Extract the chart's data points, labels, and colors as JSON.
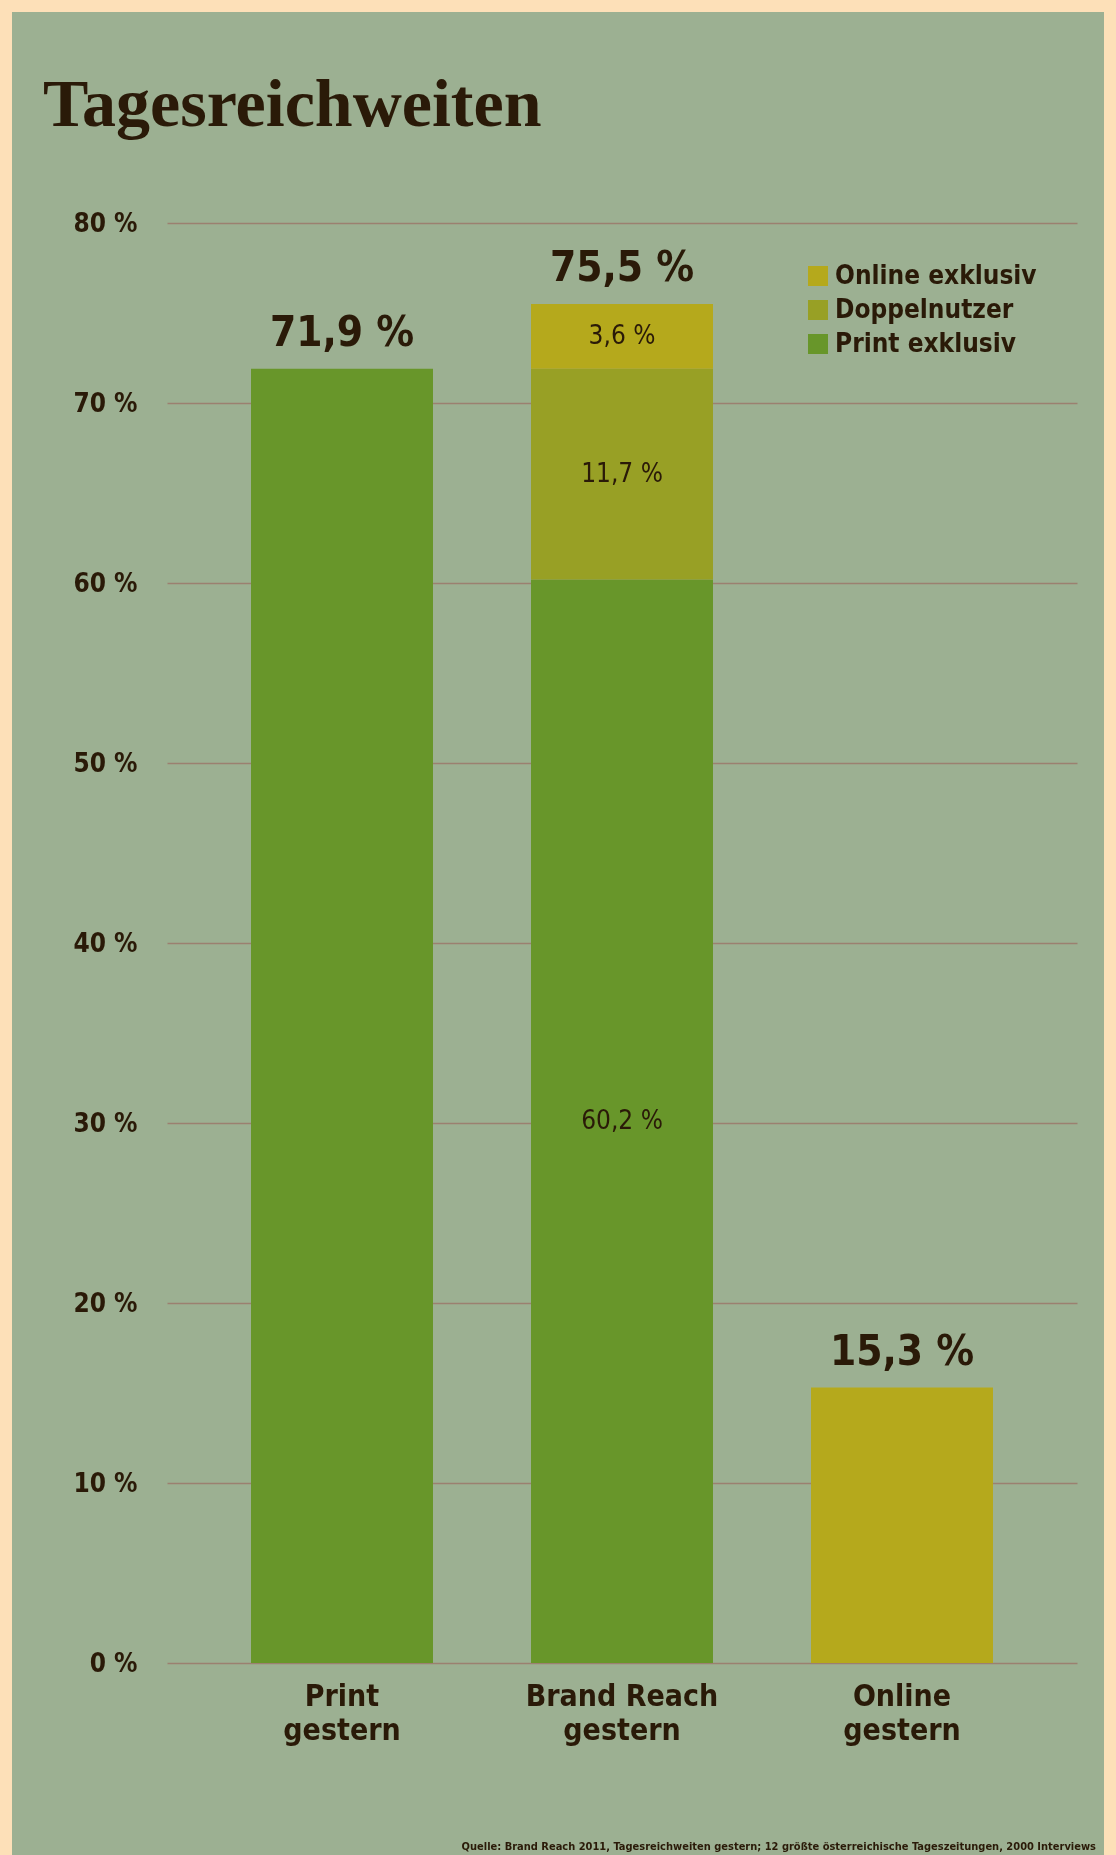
{
  "chart_data": {
    "type": "bar",
    "title": "Tagesreichweiten",
    "categories": [
      "Print\ngestern",
      "Brand Reach\ngestern",
      "Online\ngestern"
    ],
    "stacked": true,
    "series": [
      {
        "name": "Print exklusiv",
        "color": "#68962a",
        "values": [
          71.9,
          60.2,
          null
        ],
        "value_labels": [
          null,
          "60,2 %",
          null
        ]
      },
      {
        "name": "Doppelnutzer",
        "color": "#98a025",
        "values": [
          null,
          11.7,
          null
        ],
        "value_labels": [
          null,
          "11,7 %",
          null
        ]
      },
      {
        "name": "Online exklusiv",
        "color": "#b5a91c",
        "values": [
          null,
          3.6,
          15.3
        ],
        "value_labels": [
          null,
          "3,6 %",
          null
        ]
      }
    ],
    "totals": [
      "71,9 %",
      "75,5 %",
      "15,3 %"
    ],
    "ylim": [
      0,
      80
    ],
    "yticks": [
      {
        "value": 0,
        "label": "0 %"
      },
      {
        "value": 10,
        "label": "10 %"
      },
      {
        "value": 20,
        "label": "20 %"
      },
      {
        "value": 30,
        "label": "30 %"
      },
      {
        "value": 40,
        "label": "40 %"
      },
      {
        "value": 50,
        "label": "50 %"
      },
      {
        "value": 60,
        "label": "60 %"
      },
      {
        "value": 70,
        "label": "70 %"
      },
      {
        "value": 80,
        "label": "80 %"
      }
    ],
    "grid": "y",
    "legend": "top right",
    "annotations": [
      "Quelle: Brand Reach 2011, Tagesreichweiten gestern; 12 größte österreichische Tageszeitungen, 2000 Interviews"
    ]
  }
}
